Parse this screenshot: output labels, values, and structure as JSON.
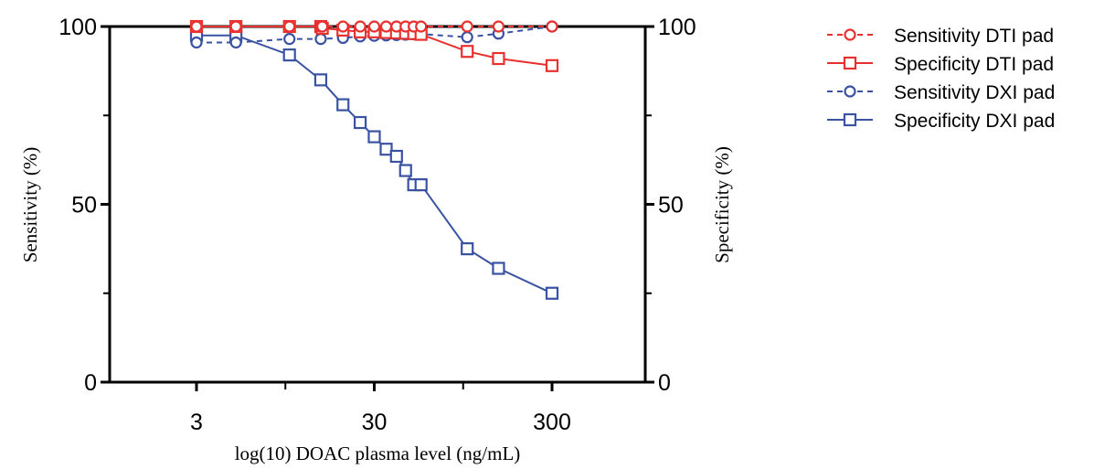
{
  "chart_data": {
    "type": "line",
    "title": "",
    "xlabel": "log(10) DOAC plasma level (ng/mL)",
    "ylabel_left": "Sensitivity (%)",
    "ylabel_right": "Specificity (%)",
    "x_scale": "log10",
    "xlim": [
      1,
      1000
    ],
    "ylim": [
      0,
      100
    ],
    "x_ticks": [
      3,
      30,
      300
    ],
    "x_tick_labels": [
      "3",
      "30",
      "300"
    ],
    "y_ticks_left": [
      0,
      50,
      100
    ],
    "y_tick_labels_left": [
      "0",
      "50",
      "100"
    ],
    "y_ticks_right": [
      0,
      50,
      100
    ],
    "y_tick_labels_right": [
      "0",
      "50",
      "100"
    ],
    "grid": false,
    "legend_position": "right",
    "series": [
      {
        "name": "Sensitivity DTI pad",
        "color": "#e8312f",
        "marker": "circle",
        "line": "dashed",
        "axis": "left",
        "x": [
          3,
          5,
          10,
          15,
          15.3,
          20,
          25,
          30,
          35,
          40,
          45,
          50,
          55,
          100,
          150,
          300
        ],
        "y": [
          100,
          100,
          100,
          100,
          100,
          100,
          100,
          100,
          100,
          100,
          100,
          100,
          100,
          100,
          100,
          100
        ]
      },
      {
        "name": "Specificity DTI pad",
        "color": "#e8312f",
        "marker": "square",
        "line": "solid",
        "axis": "right",
        "x": [
          3,
          5,
          10,
          15,
          15.3,
          20,
          25,
          30,
          35,
          40,
          45,
          50,
          55,
          100,
          150,
          300
        ],
        "y": [
          100,
          100,
          100,
          100,
          99.5,
          99,
          98.5,
          98.5,
          98.3,
          98.2,
          98.1,
          98,
          97.8,
          93,
          91,
          89
        ]
      },
      {
        "name": "Sensitivity DXI pad",
        "color": "#3a52a2",
        "marker": "circle",
        "line": "dashed",
        "axis": "left",
        "x": [
          3,
          5,
          10,
          15,
          20,
          25,
          30,
          35,
          40,
          45,
          50,
          55,
          100,
          150,
          300
        ],
        "y": [
          95.5,
          95.5,
          96.5,
          96.5,
          96.8,
          97.2,
          97.4,
          97.5,
          97.6,
          97.7,
          97.8,
          97.9,
          97,
          98,
          100
        ]
      },
      {
        "name": "Specificity DXI pad",
        "color": "#3a52a2",
        "marker": "square",
        "line": "solid",
        "axis": "right",
        "x": [
          3,
          5,
          10,
          15,
          20,
          25,
          30,
          35,
          40,
          45,
          50,
          55,
          100,
          150,
          300
        ],
        "y": [
          97.5,
          97.5,
          92,
          85,
          78,
          73,
          69,
          65.5,
          63.5,
          59.5,
          55.5,
          55.5,
          37.5,
          32,
          25
        ]
      }
    ]
  }
}
